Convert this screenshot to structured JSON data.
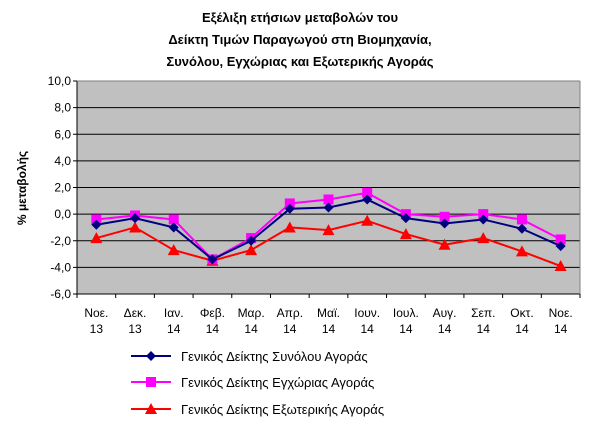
{
  "chart_data": {
    "type": "line",
    "title_lines": [
      "Εξέλιξη ετήσιων μεταβολών του",
      "Δείκτη Τιμών Παραγωγού στη Βιομηχανία,",
      "Συνόλου, Εγχώριας και Εξωτερικής Αγοράς"
    ],
    "xlabel": "",
    "ylabel": "% μεταβολής",
    "ylim": [
      -6,
      10
    ],
    "yticks": [
      "10,0",
      "8,0",
      "6,0",
      "4,0",
      "2,0",
      "0,0",
      "-2,0",
      "-4,0",
      "-6,0"
    ],
    "ytick_values": [
      10,
      8,
      6,
      4,
      2,
      0,
      -2,
      -4,
      -6
    ],
    "categories": [
      [
        "Νοε.",
        "13"
      ],
      [
        "Δεκ.",
        "13"
      ],
      [
        "Ιαν.",
        "14"
      ],
      [
        "Φεβ.",
        "14"
      ],
      [
        "Μαρ.",
        "14"
      ],
      [
        "Απρ.",
        "14"
      ],
      [
        "Μαϊ.",
        "14"
      ],
      [
        "Ιουν.",
        "14"
      ],
      [
        "Ιουλ.",
        "14"
      ],
      [
        "Αυγ.",
        "14"
      ],
      [
        "Σεπ.",
        "14"
      ],
      [
        "Οκτ.",
        "14"
      ],
      [
        "Νοε.",
        "14"
      ]
    ],
    "grid": "horizontal",
    "plot_background": "#c0c0c0",
    "legend_position": "bottom",
    "series": [
      {
        "name": "Γενικός Δείκτης Συνόλου Αγοράς",
        "color": "#000080",
        "marker": "diamond",
        "values": [
          -0.8,
          -0.3,
          -1.0,
          -3.4,
          -2.0,
          0.4,
          0.5,
          1.1,
          -0.3,
          -0.7,
          -0.4,
          -1.1,
          -2.4
        ]
      },
      {
        "name": "Γενικός Δείκτης Εγχώριας Αγοράς",
        "color": "#ff00ff",
        "marker": "square",
        "values": [
          -0.4,
          -0.1,
          -0.4,
          -3.4,
          -1.8,
          0.8,
          1.1,
          1.6,
          0.0,
          -0.2,
          0.0,
          -0.4,
          -1.9
        ]
      },
      {
        "name": "Γενικός Δείκτης Εξωτερικής Αγοράς",
        "color": "#ff0000",
        "marker": "triangle",
        "values": [
          -1.8,
          -1.0,
          -2.7,
          -3.5,
          -2.7,
          -1.0,
          -1.2,
          -0.5,
          -1.5,
          -2.3,
          -1.8,
          -2.8,
          -3.9
        ]
      }
    ]
  }
}
